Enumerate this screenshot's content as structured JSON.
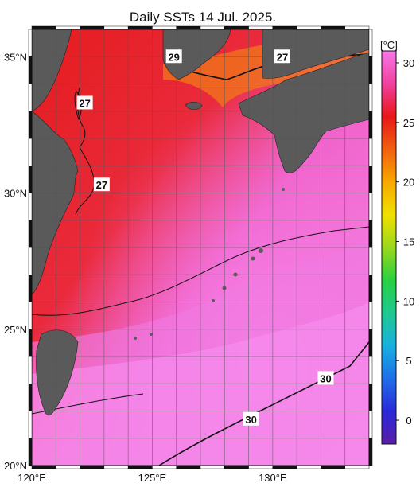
{
  "title": "Daily SSTs 14 Jul. 2025.",
  "map": {
    "lon_range": [
      120,
      134
    ],
    "lat_range": [
      20,
      36
    ],
    "lon_ticks": [
      {
        "value": 120,
        "label": "120°E"
      },
      {
        "value": 125,
        "label": "125°E"
      },
      {
        "value": 130,
        "label": "130°E"
      }
    ],
    "lat_ticks": [
      {
        "value": 35,
        "label": "35°N"
      },
      {
        "value": 30,
        "label": "30°N"
      },
      {
        "value": 25,
        "label": "25°N"
      },
      {
        "value": 20,
        "label": "20°N"
      }
    ],
    "contour_labels": [
      {
        "text": "27",
        "lon": 122.2,
        "lat": 33.3
      },
      {
        "text": "27",
        "lon": 122.9,
        "lat": 30.3
      },
      {
        "text": "27",
        "lon": 130.4,
        "lat": 35.0
      },
      {
        "text": "29",
        "lon": 125.9,
        "lat": 35.0
      },
      {
        "text": "30",
        "lon": 132.2,
        "lat": 23.2
      },
      {
        "text": "30",
        "lon": 129.1,
        "lat": 21.7
      }
    ],
    "land_color": "#5a5a5a"
  },
  "colorbar": {
    "unit": "[°C]",
    "min": -2,
    "max": 31,
    "ticks": [
      "30",
      "25",
      "20",
      "15",
      "10",
      "5",
      "0"
    ],
    "tick_values": [
      30,
      25,
      20,
      15,
      10,
      5,
      0
    ],
    "stops": [
      "#5a1ea8",
      "#2a2ad8",
      "#1e6fe8",
      "#18b0e0",
      "#1ec890",
      "#28d040",
      "#9ad81c",
      "#f0e000",
      "#f8a800",
      "#f06010",
      "#e81818",
      "#f040a0",
      "#f878e8"
    ]
  }
}
